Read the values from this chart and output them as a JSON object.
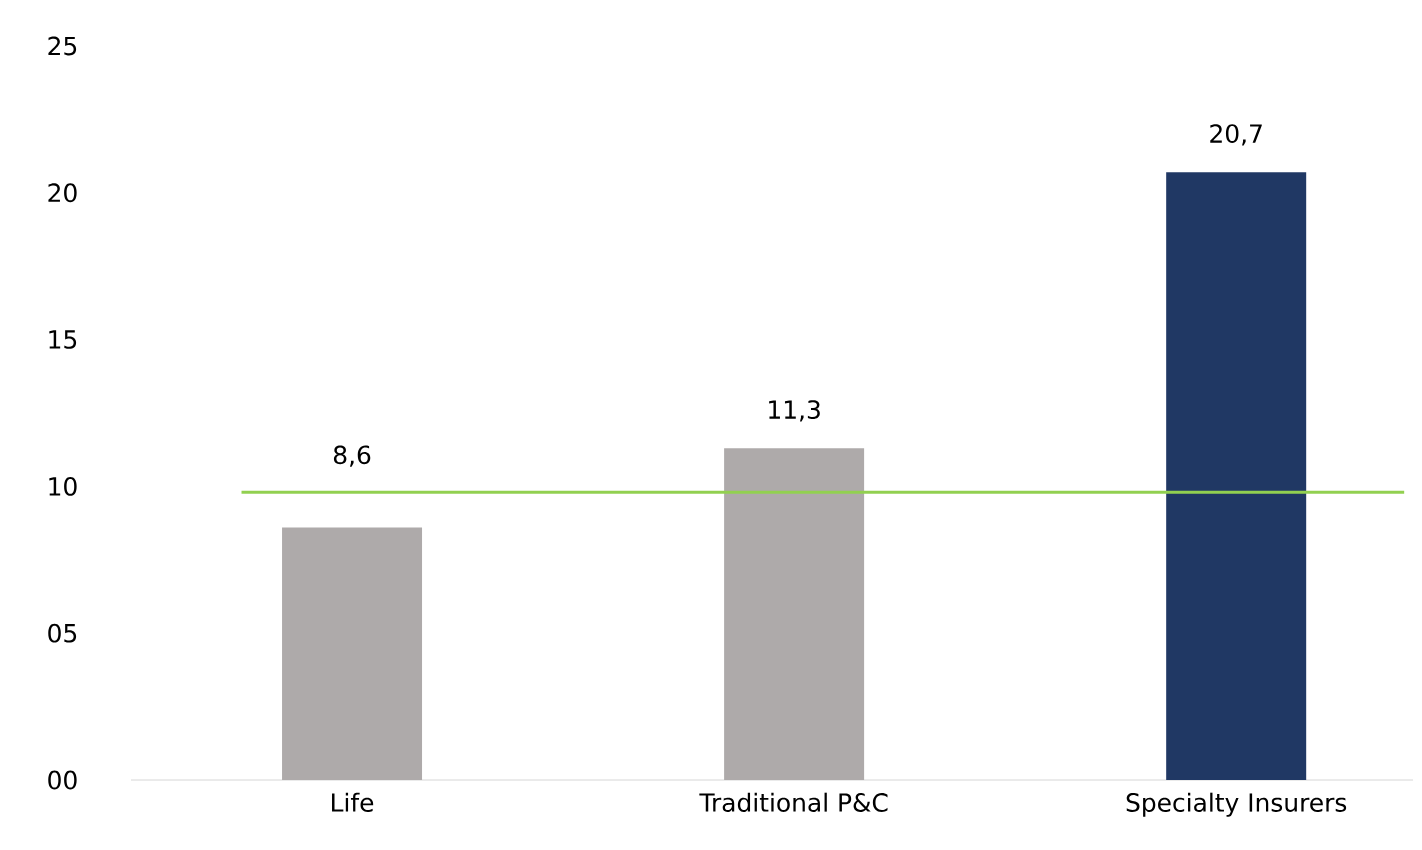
{
  "chart_data": {
    "type": "bar",
    "categories": [
      "Life",
      "Traditional P&C",
      "Specialty Insurers"
    ],
    "values": [
      8.6,
      11.3,
      20.7
    ],
    "colors": [
      "#aeaaaa",
      "#aeaaaa",
      "#203864"
    ],
    "value_labels": [
      "8,6",
      "11,3",
      "20,7"
    ],
    "ylim": [
      0,
      25
    ],
    "yticks": [
      {
        "value": 0,
        "label": "00"
      },
      {
        "value": 5,
        "label": "05"
      },
      {
        "value": 10,
        "label": "10"
      },
      {
        "value": 15,
        "label": "15"
      },
      {
        "value": 20,
        "label": "20"
      },
      {
        "value": 25,
        "label": "25"
      }
    ],
    "ref_lines": [
      {
        "axis": "y",
        "value": 9.8,
        "color": "#92d050"
      }
    ],
    "grid": false,
    "legend": false
  }
}
